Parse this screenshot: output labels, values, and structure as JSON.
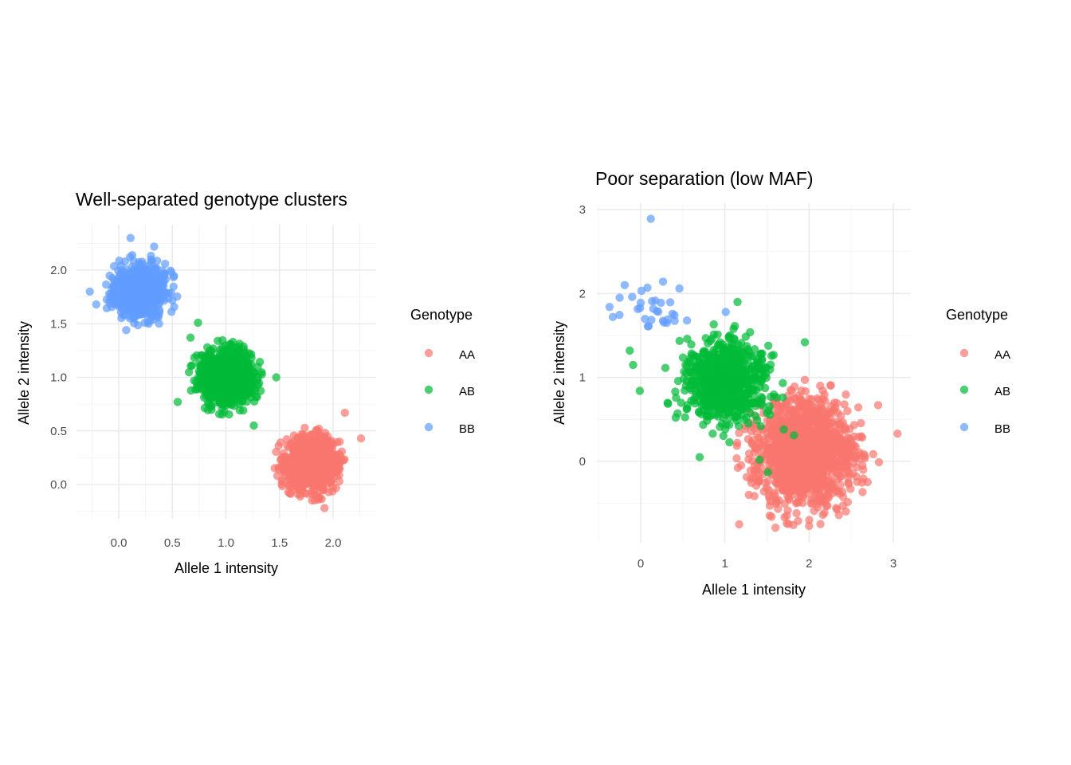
{
  "chart_data": [
    {
      "type": "scatter",
      "title": "Well-separated genotype clusters",
      "xlabel": "Allele 1 intensity",
      "ylabel": "Allele 2 intensity",
      "xlim": [
        -0.25,
        2.3
      ],
      "ylim": [
        -0.25,
        2.4
      ],
      "x_ticks": [
        0.0,
        0.5,
        1.0,
        1.5,
        2.0
      ],
      "x_tick_labels": [
        "0.0",
        "0.5",
        "1.0",
        "1.5",
        "2.0"
      ],
      "y_ticks": [
        0.0,
        0.5,
        1.0,
        1.5,
        2.0
      ],
      "y_tick_labels": [
        "0.0",
        "0.5",
        "1.0",
        "1.5",
        "2.0"
      ],
      "grid": true,
      "legend": {
        "title": "Genotype",
        "placement": "right",
        "entries": [
          "AA",
          "AB",
          "BB"
        ]
      },
      "series": [
        {
          "name": "AA",
          "color": "#F8766D",
          "cluster": {
            "center": [
              1.8,
              0.2
            ],
            "sd": [
              0.12,
              0.12
            ],
            "n": 900
          },
          "outliers": [
            [
              2.11,
              0.67
            ],
            [
              2.26,
              0.43
            ],
            [
              1.92,
              -0.22
            ],
            [
              1.48,
              0.08
            ]
          ]
        },
        {
          "name": "AB",
          "color": "#00BA38",
          "cluster": {
            "center": [
              1.0,
              1.0
            ],
            "sd": [
              0.12,
              0.12
            ],
            "n": 1100
          },
          "outliers": [
            [
              0.74,
              1.51
            ],
            [
              0.67,
              1.37
            ],
            [
              1.47,
              1.0
            ],
            [
              1.26,
              0.55
            ],
            [
              0.55,
              0.77
            ]
          ]
        },
        {
          "name": "BB",
          "color": "#619CFF",
          "cluster": {
            "center": [
              0.2,
              1.8
            ],
            "sd": [
              0.12,
              0.12
            ],
            "n": 700
          },
          "outliers": [
            [
              0.11,
              2.3
            ],
            [
              0.33,
              2.22
            ],
            [
              -0.27,
              1.8
            ],
            [
              0.42,
              1.74
            ],
            [
              -0.21,
              1.68
            ],
            [
              0.07,
              1.44
            ]
          ]
        }
      ]
    },
    {
      "type": "scatter",
      "title": "Poor separation (low MAF)",
      "xlabel": "Allele 1 intensity",
      "ylabel": "Allele 2 intensity",
      "xlim": [
        -0.5,
        3.2
      ],
      "ylim": [
        -0.95,
        3.05
      ],
      "x_ticks": [
        0,
        1,
        2,
        3
      ],
      "x_tick_labels": [
        "0",
        "1",
        "2",
        "3"
      ],
      "y_ticks": [
        0,
        1,
        2,
        3
      ],
      "y_tick_labels": [
        "0",
        "1",
        "2",
        "3"
      ],
      "grid": true,
      "legend": {
        "title": "Genotype",
        "placement": "right",
        "entries": [
          "AA",
          "AB",
          "BB"
        ]
      },
      "series": [
        {
          "name": "AA",
          "color": "#F8766D",
          "cluster": {
            "center": [
              1.95,
              0.1
            ],
            "sd": [
              0.28,
              0.3
            ],
            "n": 1500
          },
          "outliers": [
            [
              3.05,
              0.33
            ],
            [
              1.17,
              -0.75
            ],
            [
              1.6,
              -0.79
            ],
            [
              2.83,
              -0.01
            ],
            [
              2.82,
              0.67
            ],
            [
              1.87,
              -0.71
            ]
          ]
        },
        {
          "name": "AB",
          "color": "#00BA38",
          "cluster": {
            "center": [
              1.0,
              0.95
            ],
            "sd": [
              0.25,
              0.25
            ],
            "n": 700
          },
          "outliers": [
            [
              -0.13,
              1.32
            ],
            [
              -0.09,
              1.15
            ],
            [
              -0.01,
              0.84
            ],
            [
              0.7,
              0.05
            ],
            [
              1.51,
              -0.13
            ],
            [
              1.41,
              0.02
            ],
            [
              1.95,
              1.42
            ],
            [
              1.15,
              1.9
            ],
            [
              1.82,
              0.31
            ],
            [
              1.7,
              0.38
            ]
          ]
        },
        {
          "name": "BB",
          "color": "#619CFF",
          "cluster": {
            "center": [
              0.15,
              1.8
            ],
            "sd": [
              0.18,
              0.18
            ],
            "n": 25
          },
          "outliers": [
            [
              0.12,
              2.89
            ],
            [
              -0.19,
              2.1
            ],
            [
              -0.37,
              1.84
            ],
            [
              -0.33,
              1.72
            ],
            [
              0.08,
              2.07
            ],
            [
              0.46,
              2.06
            ],
            [
              -0.25,
              1.95
            ],
            [
              0.32,
              1.69
            ],
            [
              1.01,
              1.78
            ]
          ]
        }
      ]
    }
  ]
}
